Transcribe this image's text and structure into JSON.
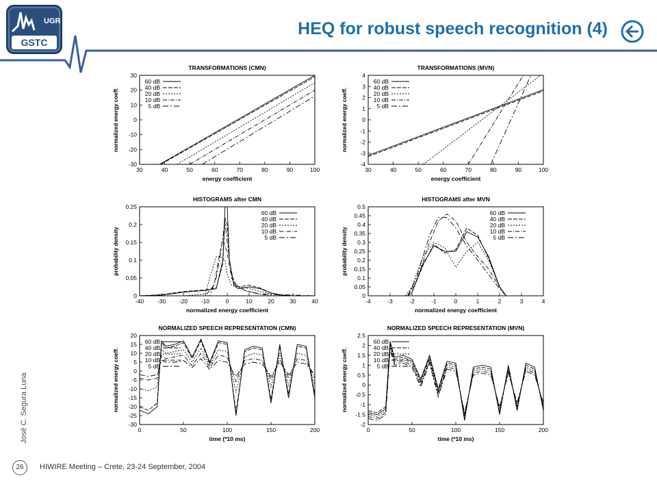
{
  "header": {
    "title": "HEQ for robust speech recognition (4)",
    "logo_text_top": "UGR",
    "logo_text_bottom": "GSTC",
    "back_icon": "back-arrow-icon",
    "colors": {
      "title": "#1f6fa8",
      "logo": "#2a4f7e",
      "wave": "#3a5f9a"
    }
  },
  "sidebar": {
    "author": "José C. Segura Luna",
    "page_number": "26"
  },
  "footer": {
    "text": "HIWIRE Meeting – Crete, 23-24 September, 2004"
  },
  "legend_labels": [
    "60 dB",
    "40 dB",
    "20 dB",
    "10 dB",
    "5 dB"
  ],
  "chart_data": [
    {
      "type": "line",
      "title": "TRANSFORMATIONS (CMN)",
      "xlabel": "energy coefficient",
      "ylabel": "normalized energy coeff.",
      "xlim": [
        30,
        100
      ],
      "ylim": [
        -30,
        30
      ],
      "xticks": [
        "30",
        "40",
        "50",
        "60",
        "70",
        "80",
        "90",
        "100"
      ],
      "yticks": [
        "-30",
        "-20",
        "-10",
        "0",
        "10",
        "20",
        "30"
      ],
      "series": [
        {
          "name": "60 dB",
          "x": [
            38,
            100
          ],
          "y": [
            -30,
            30
          ]
        },
        {
          "name": "40 dB",
          "x": [
            38.5,
            100
          ],
          "y": [
            -30,
            29
          ]
        },
        {
          "name": "20 dB",
          "x": [
            45,
            100
          ],
          "y": [
            -30,
            25
          ]
        },
        {
          "name": "10 dB",
          "x": [
            50,
            100
          ],
          "y": [
            -30,
            20
          ]
        },
        {
          "name": "5 dB",
          "x": [
            55,
            100
          ],
          "y": [
            -30,
            16
          ]
        }
      ]
    },
    {
      "type": "line",
      "title": "TRANSFORMATIONS (MVN)",
      "xlabel": "energy coefficient",
      "ylabel": "normalized energy coeff.",
      "xlim": [
        30,
        100
      ],
      "ylim": [
        -4,
        4
      ],
      "xticks": [
        "30",
        "40",
        "50",
        "60",
        "70",
        "80",
        "90",
        "100"
      ],
      "yticks": [
        "-4",
        "-3",
        "-2",
        "-1",
        "0",
        "1",
        "2",
        "3",
        "4"
      ],
      "series": [
        {
          "name": "60 dB",
          "x": [
            30,
            100
          ],
          "y": [
            -3.2,
            2.7
          ]
        },
        {
          "name": "40 dB",
          "x": [
            30,
            100
          ],
          "y": [
            -3.3,
            2.6
          ]
        },
        {
          "name": "20 dB",
          "x": [
            52,
            100
          ],
          "y": [
            -4,
            4.2
          ]
        },
        {
          "name": "10 dB",
          "x": [
            70,
            92
          ],
          "y": [
            -4,
            4
          ]
        },
        {
          "name": "5 dB",
          "x": [
            79,
            95
          ],
          "y": [
            -4,
            4
          ]
        }
      ]
    },
    {
      "type": "line",
      "title": "HISTOGRAMS after CMN",
      "xlabel": "normalized energy coefficient",
      "ylabel": "probability density",
      "xlim": [
        -40,
        40
      ],
      "ylim": [
        0,
        0.25
      ],
      "xticks": [
        "-40",
        "-30",
        "-20",
        "-10",
        "0",
        "10",
        "20",
        "30",
        "40"
      ],
      "yticks": [
        "0",
        "0.05",
        "0.1",
        "0.15",
        "0.2",
        "0.25"
      ],
      "series": [
        {
          "name": "60 dB",
          "x": [
            -40,
            -30,
            -20,
            -10,
            -5,
            -2,
            -1,
            0,
            1,
            3,
            5,
            10,
            15,
            20,
            25,
            30,
            40
          ],
          "y": [
            0,
            0.002,
            0.01,
            0.015,
            0.02,
            0.1,
            0.25,
            0.25,
            0.1,
            0.03,
            0.02,
            0.025,
            0.02,
            0.008,
            0.002,
            0,
            0
          ]
        },
        {
          "name": "40 dB",
          "x": [
            -40,
            -30,
            -20,
            -10,
            -5,
            -2,
            -1,
            0,
            1,
            3,
            5,
            10,
            15,
            20,
            25,
            30,
            40
          ],
          "y": [
            0,
            0.003,
            0.012,
            0.017,
            0.022,
            0.09,
            0.22,
            0.2,
            0.1,
            0.035,
            0.025,
            0.03,
            0.022,
            0.008,
            0.002,
            0,
            0
          ]
        },
        {
          "name": "20 dB",
          "x": [
            -40,
            -20,
            -10,
            -8,
            -5,
            -3,
            -1,
            0,
            2,
            5,
            10,
            15,
            20,
            25,
            40
          ],
          "y": [
            0,
            0,
            0.005,
            0.05,
            0.11,
            0.11,
            0.1,
            0.06,
            0.03,
            0.025,
            0.02,
            0.012,
            0.005,
            0,
            0
          ]
        },
        {
          "name": "10 dB",
          "x": [
            -40,
            -10,
            -6,
            -4,
            -2,
            0,
            2,
            4,
            8,
            12,
            20,
            40
          ],
          "y": [
            0,
            0,
            0.03,
            0.1,
            0.16,
            0.12,
            0.05,
            0.03,
            0.015,
            0.008,
            0,
            0
          ]
        },
        {
          "name": "5 dB",
          "x": [
            -40,
            -8,
            -5,
            -3,
            -1,
            0,
            2,
            4,
            8,
            15,
            40
          ],
          "y": [
            0,
            0,
            0.05,
            0.12,
            0.21,
            0.15,
            0.06,
            0.03,
            0.015,
            0.005,
            0
          ]
        }
      ]
    },
    {
      "type": "line",
      "title": "HISTOGRAMS after MVN",
      "xlabel": "normalized energy coefficient",
      "ylabel": "probability density",
      "xlim": [
        -4,
        4
      ],
      "ylim": [
        0,
        0.5
      ],
      "xticks": [
        "-4",
        "-3",
        "-2",
        "-1",
        "0",
        "1",
        "2",
        "3",
        "4"
      ],
      "yticks": [
        "0",
        "0.05",
        "0.1",
        "0.15",
        "0.2",
        "0.25",
        "0.3",
        "0.35",
        "0.4",
        "0.45",
        "0.5"
      ],
      "series": [
        {
          "name": "60 dB",
          "x": [
            -2.2,
            -2,
            -1.5,
            -1,
            -0.5,
            0,
            0.5,
            1,
            1.5,
            2,
            2.3
          ],
          "y": [
            0,
            0.02,
            0.18,
            0.28,
            0.25,
            0.25,
            0.36,
            0.33,
            0.22,
            0.05,
            0
          ]
        },
        {
          "name": "40 dB",
          "x": [
            -2.2,
            -2,
            -1.5,
            -1,
            -0.5,
            0,
            0.5,
            1,
            1.5,
            2,
            2.3
          ],
          "y": [
            0,
            0.02,
            0.17,
            0.29,
            0.24,
            0.26,
            0.38,
            0.34,
            0.21,
            0.05,
            0
          ]
        },
        {
          "name": "20 dB",
          "x": [
            -2.3,
            -2,
            -1.5,
            -1,
            -0.5,
            0,
            0.5,
            1,
            1.5,
            2,
            2.3
          ],
          "y": [
            0,
            0.05,
            0.22,
            0.3,
            0.27,
            0.16,
            0.25,
            0.3,
            0.2,
            0.05,
            0
          ]
        },
        {
          "name": "10 dB",
          "x": [
            -2.2,
            -1.8,
            -1.2,
            -0.8,
            -0.4,
            0,
            0.5,
            1,
            1.5,
            2,
            2.3
          ],
          "y": [
            0,
            0.08,
            0.3,
            0.42,
            0.46,
            0.42,
            0.3,
            0.22,
            0.15,
            0.05,
            0
          ]
        },
        {
          "name": "5 dB",
          "x": [
            -2.2,
            -1.8,
            -1.2,
            -0.8,
            -0.4,
            0,
            0.5,
            1,
            1.5,
            2,
            2.3
          ],
          "y": [
            0,
            0.1,
            0.34,
            0.44,
            0.44,
            0.38,
            0.28,
            0.2,
            0.12,
            0.04,
            0
          ]
        }
      ]
    },
    {
      "type": "line",
      "title": "NORMALIZED SPEECH REPRESENTATION (CMN)",
      "xlabel": "time (*10 ms)",
      "ylabel": "normalized energy coeff.",
      "xlim": [
        0,
        200
      ],
      "ylim": [
        -30,
        20
      ],
      "xticks": [
        "0",
        "50",
        "100",
        "150",
        "200"
      ],
      "yticks": [
        "-30",
        "-25",
        "-20",
        "-15",
        "-10",
        "-5",
        "0",
        "5",
        "10",
        "15",
        "20"
      ],
      "series": [
        {
          "name": "60 dB",
          "x": [
            0,
            10,
            20,
            25,
            30,
            40,
            50,
            60,
            70,
            80,
            90,
            100,
            110,
            120,
            130,
            140,
            150,
            160,
            170,
            180,
            190,
            200
          ],
          "y": [
            -22,
            -24,
            -20,
            17,
            14,
            15,
            17,
            8,
            18,
            5,
            17,
            16,
            -25,
            12,
            14,
            13,
            -18,
            15,
            -15,
            15,
            14,
            -15
          ]
        },
        {
          "name": "40 dB",
          "x": [
            0,
            10,
            20,
            25,
            30,
            40,
            50,
            60,
            70,
            80,
            90,
            100,
            110,
            120,
            130,
            140,
            150,
            160,
            170,
            180,
            190,
            200
          ],
          "y": [
            -20,
            -22,
            -18,
            16,
            13,
            14,
            16,
            7,
            17,
            4,
            16,
            15,
            -23,
            11,
            13,
            12,
            -16,
            14,
            -13,
            14,
            13,
            -13
          ]
        },
        {
          "name": "20 dB",
          "x": [
            0,
            10,
            20,
            25,
            30,
            40,
            50,
            60,
            70,
            80,
            90,
            100,
            110,
            120,
            130,
            140,
            150,
            160,
            170,
            180,
            190,
            200
          ],
          "y": [
            -10,
            -11,
            -9,
            12,
            10,
            11,
            12,
            5,
            13,
            3,
            12,
            11,
            -12,
            8,
            10,
            9,
            -9,
            10,
            -8,
            10,
            9,
            -8
          ]
        },
        {
          "name": "10 dB",
          "x": [
            0,
            10,
            20,
            25,
            30,
            40,
            50,
            60,
            70,
            80,
            90,
            100,
            110,
            120,
            130,
            140,
            150,
            160,
            170,
            180,
            190,
            200
          ],
          "y": [
            -4,
            -5,
            -4,
            9,
            7,
            8,
            9,
            3,
            10,
            2,
            9,
            8,
            -6,
            6,
            7,
            6,
            -5,
            7,
            -4,
            7,
            6,
            -4
          ]
        },
        {
          "name": "5 dB",
          "x": [
            0,
            10,
            20,
            25,
            30,
            40,
            50,
            60,
            70,
            80,
            90,
            100,
            110,
            120,
            130,
            140,
            150,
            160,
            170,
            180,
            190,
            200
          ],
          "y": [
            -2,
            -3,
            -2,
            6,
            5,
            5,
            6,
            2,
            7,
            1,
            6,
            5,
            -3,
            4,
            5,
            4,
            -3,
            5,
            -2,
            5,
            4,
            -2
          ]
        }
      ]
    },
    {
      "type": "line",
      "title": "NORMALIZED SPEECH REPRESENTATION (MVN)",
      "xlabel": "time (*10 ms)",
      "ylabel": "normalized energy coeff.",
      "xlim": [
        0,
        200
      ],
      "ylim": [
        -2,
        2.5
      ],
      "xticks": [
        "0",
        "50",
        "100",
        "150",
        "200"
      ],
      "yticks": [
        "-2",
        "-1.5",
        "-1",
        "-0.5",
        "0",
        "0.5",
        "1",
        "1.5",
        "2",
        "2.5"
      ],
      "series": [
        {
          "name": "60 dB",
          "x": [
            0,
            10,
            20,
            25,
            30,
            40,
            50,
            60,
            70,
            80,
            90,
            100,
            110,
            120,
            130,
            140,
            150,
            160,
            170,
            180,
            190,
            200
          ],
          "y": [
            -1.4,
            -1.5,
            -1.2,
            2.2,
            1.4,
            1.5,
            1.3,
            0.3,
            1.5,
            -0.2,
            1.2,
            1.1,
            -1.8,
            0.9,
            1.0,
            0.9,
            -1.5,
            1.0,
            -1.3,
            1.1,
            0.9,
            -1.3
          ]
        },
        {
          "name": "40 dB",
          "x": [
            0,
            10,
            20,
            25,
            30,
            40,
            50,
            60,
            70,
            80,
            90,
            100,
            110,
            120,
            130,
            140,
            150,
            160,
            170,
            180,
            190,
            200
          ],
          "y": [
            -1.3,
            -1.4,
            -1.1,
            2.1,
            1.3,
            1.4,
            1.2,
            0.2,
            1.4,
            -0.3,
            1.1,
            1.0,
            -1.7,
            0.8,
            0.9,
            0.8,
            -1.4,
            0.9,
            -1.2,
            1.0,
            0.8,
            -1.2
          ]
        },
        {
          "name": "20 dB",
          "x": [
            0,
            10,
            20,
            25,
            30,
            40,
            50,
            60,
            70,
            80,
            90,
            100,
            110,
            120,
            130,
            140,
            150,
            160,
            170,
            180,
            190,
            200
          ],
          "y": [
            -1.5,
            -1.6,
            -1.3,
            2.0,
            1.2,
            1.3,
            1.1,
            0.1,
            1.3,
            -0.4,
            1.0,
            0.9,
            -1.6,
            0.7,
            0.8,
            0.7,
            -1.3,
            0.8,
            -1.1,
            0.9,
            0.7,
            -1.1
          ]
        },
        {
          "name": "10 dB",
          "x": [
            0,
            10,
            20,
            25,
            30,
            40,
            50,
            60,
            70,
            80,
            90,
            100,
            110,
            120,
            130,
            140,
            150,
            160,
            170,
            180,
            190,
            200
          ],
          "y": [
            -1.6,
            -1.7,
            -1.4,
            1.9,
            1.1,
            1.2,
            1.0,
            0.0,
            1.2,
            -0.5,
            0.9,
            0.8,
            -1.5,
            0.6,
            0.7,
            0.6,
            -1.2,
            0.7,
            -1.0,
            0.8,
            0.6,
            -1.0
          ]
        },
        {
          "name": "5 dB",
          "x": [
            0,
            10,
            20,
            25,
            30,
            40,
            50,
            60,
            70,
            80,
            90,
            100,
            110,
            120,
            130,
            140,
            150,
            160,
            170,
            180,
            190,
            200
          ],
          "y": [
            -1.7,
            -1.8,
            -1.5,
            1.8,
            1.0,
            1.1,
            0.9,
            -0.1,
            1.1,
            -0.6,
            0.8,
            0.7,
            -1.4,
            0.5,
            0.6,
            0.5,
            -1.1,
            0.6,
            -0.9,
            0.7,
            0.5,
            -0.9
          ]
        }
      ]
    }
  ]
}
